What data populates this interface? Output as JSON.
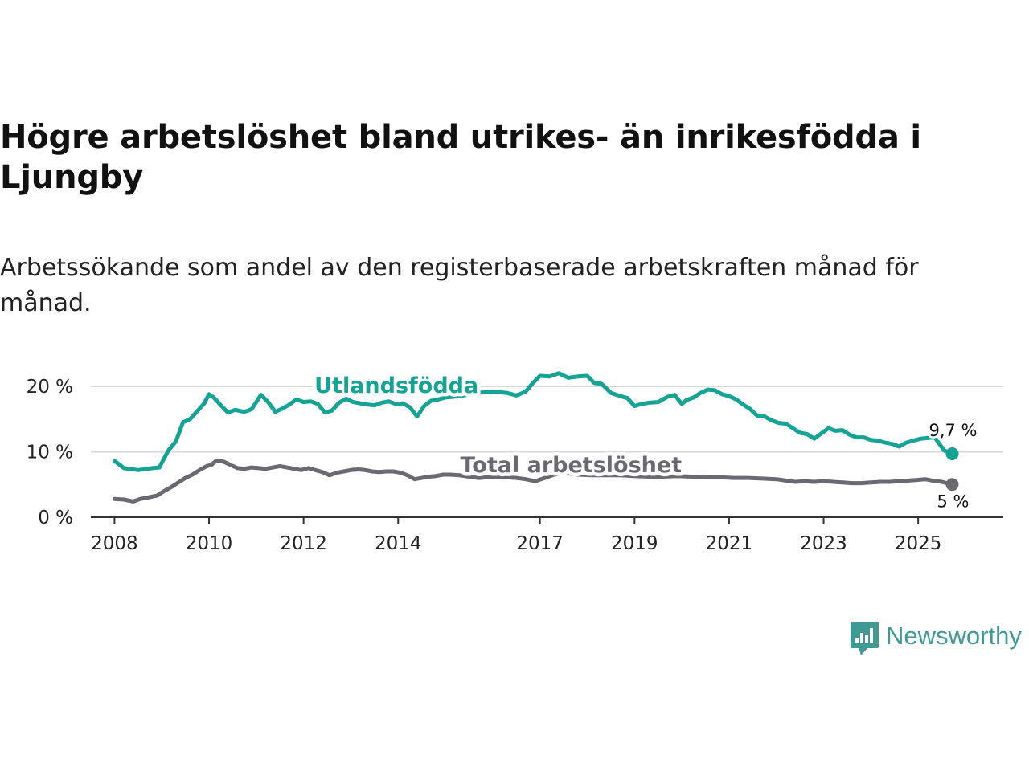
{
  "title": "Högre arbetslöshet bland utrikes- än inrikesfödda i Ljungby",
  "subtitle": "Arbetssökande som andel av den registerbaserade arbetskraften månad för månad.",
  "brand": "Newsworthy",
  "colors": {
    "foreign": "#14a394",
    "total": "#6a6871",
    "grid": "#d9d9d9",
    "axis": "#333333",
    "brand": "#3f9a93"
  },
  "chart_data": {
    "type": "line",
    "title": "Högre arbetslöshet bland utrikes- än inrikesfödda i Ljungby",
    "xlabel": "",
    "ylabel": "",
    "xlim": [
      2007.5,
      2026.8
    ],
    "ylim": [
      0,
      20
    ],
    "y_ticks": [
      0,
      10,
      20
    ],
    "y_tick_labels": [
      "0 %",
      "10 %",
      "20 %"
    ],
    "x_ticks": [
      2008,
      2010,
      2012,
      2014,
      2017,
      2019,
      2021,
      2023,
      2025
    ],
    "x_tick_labels": [
      "2008",
      "2010",
      "2012",
      "2014",
      "2017",
      "2019",
      "2021",
      "2023",
      "2025"
    ],
    "grid": true,
    "series": [
      {
        "name": "Utlandsfödda",
        "label": "Utlandsfödda",
        "end_label": "9,7 %",
        "end_value": 9.7,
        "x": [
          2008.0,
          2008.2,
          2008.5,
          2008.8,
          2008.95,
          2009.05,
          2009.15,
          2009.3,
          2009.45,
          2009.6,
          2009.75,
          2009.9,
          2010.0,
          2010.1,
          2010.25,
          2010.4,
          2010.55,
          2010.75,
          2010.9,
          2011.1,
          2011.25,
          2011.4,
          2011.55,
          2011.7,
          2011.85,
          2012.0,
          2012.15,
          2012.3,
          2012.45,
          2012.6,
          2012.75,
          2012.9,
          2013.05,
          2013.2,
          2013.35,
          2013.5,
          2013.65,
          2013.8,
          2013.95,
          2014.1,
          2014.25,
          2014.4,
          2014.55,
          2014.7,
          2014.85,
          2015.0,
          2015.3,
          2015.6,
          2015.9,
          2016.1,
          2016.3,
          2016.5,
          2016.7,
          2016.85,
          2017.0,
          2017.2,
          2017.4,
          2017.6,
          2017.8,
          2018.0,
          2018.15,
          2018.3,
          2018.5,
          2018.7,
          2018.85,
          2019.0,
          2019.15,
          2019.3,
          2019.5,
          2019.7,
          2019.85,
          2020.0,
          2020.1,
          2020.25,
          2020.4,
          2020.55,
          2020.7,
          2020.85,
          2021.0,
          2021.15,
          2021.3,
          2021.45,
          2021.6,
          2021.75,
          2021.9,
          2022.05,
          2022.2,
          2022.35,
          2022.5,
          2022.65,
          2022.8,
          2022.95,
          2023.1,
          2023.25,
          2023.4,
          2023.55,
          2023.7,
          2023.85,
          2024.0,
          2024.15,
          2024.3,
          2024.45,
          2024.6,
          2024.75,
          2024.9,
          2025.05,
          2025.2,
          2025.35,
          2025.55,
          2025.72
        ],
        "y": [
          8.6,
          7.5,
          7.2,
          7.5,
          7.6,
          9.0,
          10.3,
          11.6,
          14.5,
          15.0,
          16.2,
          17.4,
          18.8,
          18.3,
          17.1,
          16.0,
          16.4,
          16.1,
          16.5,
          18.7,
          17.6,
          16.1,
          16.6,
          17.2,
          18.0,
          17.6,
          17.7,
          17.3,
          16.0,
          16.3,
          17.5,
          18.1,
          17.6,
          17.4,
          17.2,
          17.1,
          17.5,
          17.7,
          17.3,
          17.4,
          16.8,
          15.4,
          17.0,
          17.8,
          18.0,
          18.3,
          18.5,
          18.9,
          19.2,
          19.1,
          19.0,
          18.6,
          19.2,
          20.5,
          21.6,
          21.5,
          22.0,
          21.3,
          21.5,
          21.6,
          20.5,
          20.4,
          19.0,
          18.5,
          18.2,
          17.0,
          17.3,
          17.5,
          17.6,
          18.4,
          18.7,
          17.3,
          17.9,
          18.3,
          19.0,
          19.5,
          19.4,
          18.8,
          18.5,
          18.0,
          17.2,
          16.5,
          15.5,
          15.4,
          14.8,
          14.4,
          14.3,
          13.6,
          12.9,
          12.7,
          12.0,
          12.8,
          13.6,
          13.2,
          13.3,
          12.6,
          12.2,
          12.2,
          11.8,
          11.7,
          11.4,
          11.2,
          10.8,
          11.4,
          11.7,
          12.0,
          12.1,
          12.2,
          10.2,
          9.7
        ]
      },
      {
        "name": "Total arbetslöshet",
        "label": "Total arbetslöshet",
        "end_label": "5 %",
        "end_value": 5.0,
        "x": [
          2008.0,
          2008.2,
          2008.4,
          2008.55,
          2008.7,
          2008.9,
          2009.05,
          2009.2,
          2009.35,
          2009.5,
          2009.65,
          2009.8,
          2009.95,
          2010.05,
          2010.15,
          2010.3,
          2010.45,
          2010.6,
          2010.75,
          2010.9,
          2011.05,
          2011.2,
          2011.35,
          2011.5,
          2011.65,
          2011.8,
          2011.95,
          2012.1,
          2012.25,
          2012.4,
          2012.55,
          2012.7,
          2012.85,
          2013.0,
          2013.15,
          2013.3,
          2013.45,
          2013.6,
          2013.75,
          2013.9,
          2014.05,
          2014.2,
          2014.35,
          2014.5,
          2014.65,
          2014.8,
          2014.95,
          2015.1,
          2015.3,
          2015.5,
          2015.7,
          2015.9,
          2016.1,
          2016.3,
          2016.5,
          2016.7,
          2016.9,
          2017.1,
          2017.3,
          2017.5,
          2017.8,
          2018.1,
          2018.4,
          2018.7,
          2019.0,
          2019.3,
          2019.6,
          2019.9,
          2020.2,
          2020.5,
          2020.8,
          2021.1,
          2021.4,
          2021.7,
          2022.0,
          2022.2,
          2022.4,
          2022.6,
          2022.8,
          2023.0,
          2023.2,
          2023.4,
          2023.6,
          2023.8,
          2024.0,
          2024.2,
          2024.4,
          2024.6,
          2024.8,
          2025.0,
          2025.15,
          2025.3,
          2025.5,
          2025.72
        ],
        "y": [
          2.8,
          2.7,
          2.4,
          2.8,
          3.0,
          3.3,
          4.0,
          4.6,
          5.3,
          6.0,
          6.5,
          7.2,
          7.8,
          8.0,
          8.6,
          8.5,
          8.0,
          7.5,
          7.4,
          7.6,
          7.5,
          7.4,
          7.6,
          7.8,
          7.6,
          7.4,
          7.2,
          7.5,
          7.2,
          6.9,
          6.4,
          6.8,
          7.0,
          7.2,
          7.3,
          7.2,
          7.0,
          6.9,
          7.0,
          7.0,
          6.8,
          6.4,
          5.8,
          6.0,
          6.2,
          6.3,
          6.5,
          6.5,
          6.4,
          6.2,
          6.0,
          6.1,
          6.2,
          6.1,
          6.0,
          5.8,
          5.5,
          6.0,
          6.5,
          6.8,
          6.5,
          6.4,
          6.4,
          6.4,
          6.3,
          6.2,
          6.2,
          6.3,
          6.2,
          6.1,
          6.1,
          6.0,
          6.0,
          5.9,
          5.8,
          5.6,
          5.4,
          5.5,
          5.4,
          5.5,
          5.4,
          5.3,
          5.2,
          5.2,
          5.3,
          5.4,
          5.4,
          5.5,
          5.6,
          5.7,
          5.8,
          5.6,
          5.4,
          5.0
        ]
      }
    ]
  }
}
